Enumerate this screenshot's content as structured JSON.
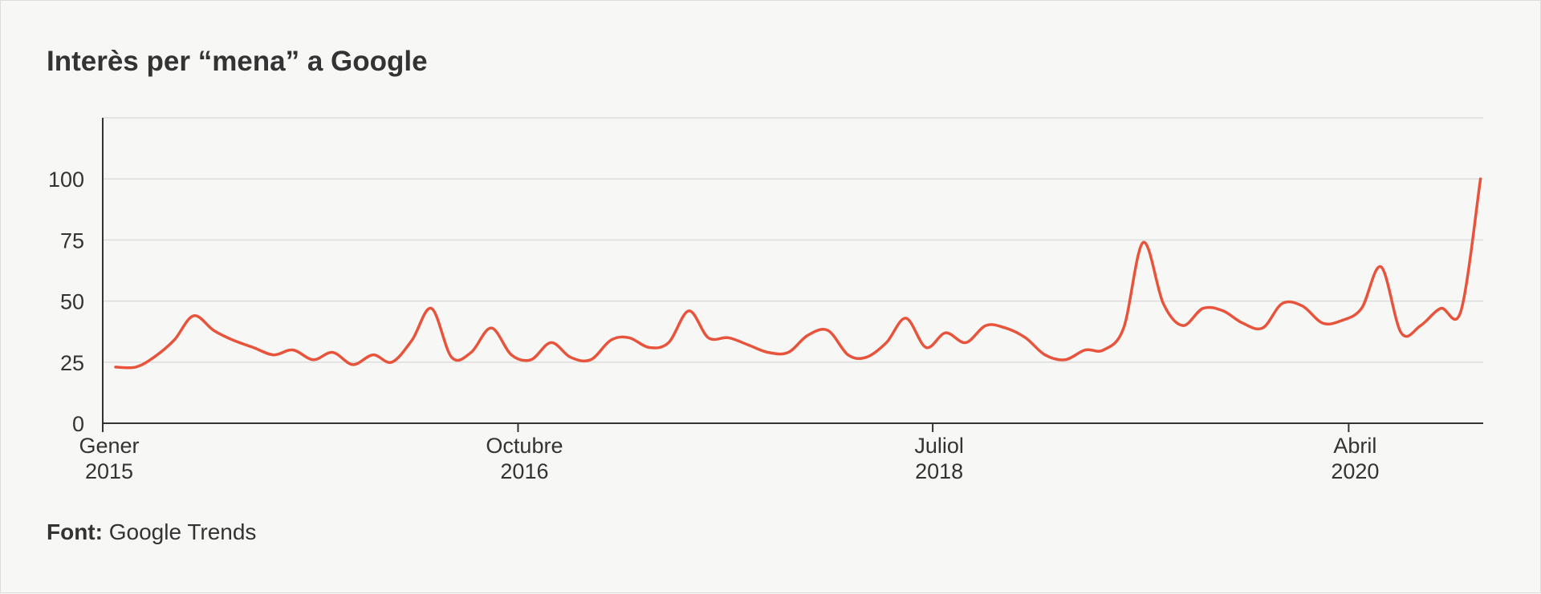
{
  "chart_title": "Interès per “mena” a Google",
  "source": {
    "label": "Font:",
    "text": "Google Trends"
  },
  "colors": {
    "line": "#e8533c",
    "grid": "#dddddd",
    "axis": "#333333",
    "background": "#f7f7f5"
  },
  "chart_data": {
    "type": "line",
    "title": "Interès per “mena” a Google",
    "xlabel": "",
    "ylabel": "",
    "ylim": [
      0,
      125
    ],
    "yticks": [
      0,
      25,
      50,
      75,
      100
    ],
    "xlim": [
      "2015-01-01",
      "2020-10-25"
    ],
    "xticks": [
      {
        "date": "2015-01-01",
        "label": [
          "Gener",
          "2015"
        ]
      },
      {
        "date": "2016-10-01",
        "label": [
          "Octubre",
          "2016"
        ]
      },
      {
        "date": "2018-07-01",
        "label": [
          "Juliol",
          "2018"
        ]
      },
      {
        "date": "2020-04-01",
        "label": [
          "Abril",
          "2020"
        ]
      }
    ],
    "grid": true,
    "series": [
      {
        "x": [
          "2015-01-01",
          "2015-02-01",
          "2015-03-01",
          "2015-04-01",
          "2015-05-01",
          "2015-06-01",
          "2015-07-01",
          "2015-08-01",
          "2015-09-01",
          "2015-10-01",
          "2015-11-01",
          "2015-12-01",
          "2016-01-01",
          "2016-02-01",
          "2016-03-01",
          "2016-04-01",
          "2016-05-01",
          "2016-06-01",
          "2016-07-01",
          "2016-08-01",
          "2016-09-01",
          "2016-10-01",
          "2016-11-01",
          "2016-12-01",
          "2017-01-01",
          "2017-02-01",
          "2017-03-01",
          "2017-04-01",
          "2017-05-01",
          "2017-06-01",
          "2017-07-01",
          "2017-08-01",
          "2017-09-01",
          "2017-10-01",
          "2017-11-01",
          "2017-12-01",
          "2018-01-01",
          "2018-02-01",
          "2018-03-01",
          "2018-04-01",
          "2018-05-01",
          "2018-06-01",
          "2018-07-01",
          "2018-08-01",
          "2018-09-01",
          "2018-10-01",
          "2018-11-01",
          "2018-12-01",
          "2019-01-01",
          "2019-02-01",
          "2019-03-01",
          "2019-04-01",
          "2019-05-01",
          "2019-06-01",
          "2019-07-01",
          "2019-08-01",
          "2019-09-01",
          "2019-10-01",
          "2019-11-01",
          "2019-12-01",
          "2020-01-01",
          "2020-02-01",
          "2020-03-01",
          "2020-04-01",
          "2020-05-01",
          "2020-06-01",
          "2020-07-01",
          "2020-08-01",
          "2020-09-01",
          "2020-10-01"
        ],
        "values": [
          23,
          23,
          27,
          34,
          44,
          38,
          34,
          31,
          28,
          30,
          26,
          29,
          24,
          28,
          25,
          34,
          47,
          27,
          29,
          39,
          28,
          26,
          33,
          27,
          26,
          34,
          35,
          31,
          33,
          46,
          35,
          35,
          32,
          29,
          29,
          36,
          38,
          28,
          27,
          33,
          43,
          31,
          37,
          33,
          40,
          39,
          35,
          28,
          26,
          30,
          30,
          39,
          74,
          49,
          40,
          47,
          46,
          41,
          39,
          49,
          48,
          41,
          42,
          47,
          64,
          37,
          40,
          47,
          46,
          100
        ]
      }
    ]
  }
}
